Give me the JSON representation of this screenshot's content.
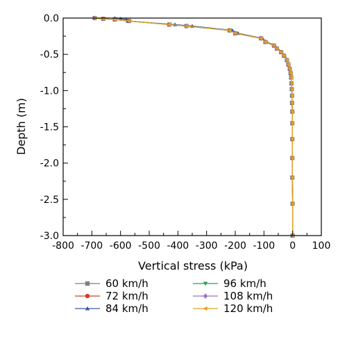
{
  "chart_data": {
    "type": "line",
    "title": "",
    "xlabel": "Vertical stress (kPa)",
    "ylabel": "Depth (m)",
    "xlim": [
      -800,
      100
    ],
    "ylim": [
      -3.0,
      0.0
    ],
    "xticks": [
      -800,
      -700,
      -600,
      -500,
      -400,
      -300,
      -200,
      -100,
      0,
      100
    ],
    "yticks": [
      0.0,
      -0.5,
      -1.0,
      -1.5,
      -2.0,
      -2.5,
      -3.0
    ],
    "xtick_labels": [
      "-800",
      "-700",
      "-600",
      "-500",
      "-400",
      "-300",
      "-200",
      "-100",
      "0",
      "100"
    ],
    "ytick_labels": [
      "0.0",
      "-0.5",
      "-1.0",
      "-1.5",
      "-2.0",
      "-2.5",
      "-3.0"
    ],
    "grid": false,
    "legend_position": "bottom",
    "series": [
      {
        "name": "60 km/h",
        "color": "#7f7f7f",
        "marker": "square",
        "x": [
          -690,
          -660,
          -620,
          -570,
          -430,
          -370,
          -220,
          -200,
          -110,
          -95,
          -65,
          -55,
          -40,
          -30,
          -20,
          -15,
          -10,
          -7,
          -5,
          -4,
          -3,
          -2,
          -2,
          -1,
          -1,
          -1,
          -1,
          -1,
          0,
          0
        ],
        "y": [
          0.0,
          -0.01,
          -0.02,
          -0.04,
          -0.09,
          -0.11,
          -0.17,
          -0.21,
          -0.28,
          -0.33,
          -0.38,
          -0.42,
          -0.47,
          -0.52,
          -0.58,
          -0.64,
          -0.7,
          -0.76,
          -0.82,
          -0.9,
          -0.98,
          -1.07,
          -1.17,
          -1.29,
          -1.45,
          -1.67,
          -1.93,
          -2.2,
          -2.56,
          -3.0
        ]
      },
      {
        "name": "72 km/h",
        "color": "#d23a2a",
        "marker": "circle",
        "x": [
          -690,
          -660,
          -620,
          -570,
          -430,
          -370,
          -220,
          -200,
          -110,
          -95,
          -65,
          -55,
          -40,
          -30,
          -20,
          -15,
          -10,
          -7,
          -5,
          -4,
          -3,
          -2,
          -2,
          -1,
          -1,
          -1,
          -1,
          -1,
          0,
          0
        ],
        "y": [
          0.0,
          -0.01,
          -0.02,
          -0.04,
          -0.09,
          -0.11,
          -0.17,
          -0.21,
          -0.28,
          -0.33,
          -0.38,
          -0.42,
          -0.47,
          -0.52,
          -0.58,
          -0.64,
          -0.7,
          -0.76,
          -0.82,
          -0.9,
          -0.98,
          -1.07,
          -1.17,
          -1.29,
          -1.45,
          -1.67,
          -1.93,
          -2.2,
          -2.56,
          -3.0
        ]
      },
      {
        "name": "84 km/h",
        "color": "#3a5ba0",
        "marker": "triangle-up",
        "x": [
          -620,
          -600,
          -580,
          -575,
          -410,
          -350,
          -210,
          -190,
          -105,
          -90,
          -62,
          -52,
          -38,
          -28,
          -19,
          -14,
          -10,
          -7,
          -5,
          -4,
          -3,
          -2,
          -2,
          -1,
          -1,
          -1,
          -1,
          -1,
          0,
          0
        ],
        "y": [
          0.0,
          -0.01,
          -0.02,
          -0.04,
          -0.09,
          -0.11,
          -0.17,
          -0.21,
          -0.28,
          -0.33,
          -0.38,
          -0.42,
          -0.47,
          -0.52,
          -0.58,
          -0.64,
          -0.7,
          -0.76,
          -0.82,
          -0.9,
          -0.98,
          -1.07,
          -1.17,
          -1.29,
          -1.45,
          -1.67,
          -1.93,
          -2.2,
          -2.56,
          -3.0
        ]
      },
      {
        "name": "96 km/h",
        "color": "#2e9e4a",
        "marker": "triangle-down",
        "x": [
          -690,
          -660,
          -620,
          -570,
          -430,
          -370,
          -220,
          -200,
          -110,
          -95,
          -65,
          -55,
          -40,
          -30,
          -20,
          -15,
          -10,
          -7,
          -5,
          -4,
          -3,
          -2,
          -2,
          -1,
          -1,
          -1,
          -1,
          -1,
          0,
          0
        ],
        "y": [
          0.0,
          -0.01,
          -0.02,
          -0.04,
          -0.09,
          -0.11,
          -0.17,
          -0.21,
          -0.28,
          -0.33,
          -0.38,
          -0.42,
          -0.47,
          -0.52,
          -0.58,
          -0.64,
          -0.7,
          -0.76,
          -0.82,
          -0.9,
          -0.98,
          -1.07,
          -1.17,
          -1.29,
          -1.45,
          -1.67,
          -1.93,
          -2.2,
          -2.56,
          -3.0
        ]
      },
      {
        "name": "108 km/h",
        "color": "#9b6fc8",
        "marker": "diamond",
        "x": [
          -690,
          -660,
          -620,
          -570,
          -430,
          -370,
          -220,
          -200,
          -110,
          -95,
          -65,
          -55,
          -40,
          -30,
          -20,
          -15,
          -10,
          -7,
          -5,
          -4,
          -3,
          -2,
          -2,
          -1,
          -1,
          -1,
          -1,
          -1,
          0,
          0
        ],
        "y": [
          0.0,
          -0.01,
          -0.02,
          -0.04,
          -0.09,
          -0.11,
          -0.17,
          -0.21,
          -0.28,
          -0.33,
          -0.38,
          -0.42,
          -0.47,
          -0.52,
          -0.58,
          -0.64,
          -0.7,
          -0.76,
          -0.82,
          -0.9,
          -0.98,
          -1.07,
          -1.17,
          -1.29,
          -1.45,
          -1.67,
          -1.93,
          -2.2,
          -2.56,
          -3.0
        ]
      },
      {
        "name": "120 km/h",
        "color": "#e0a21e",
        "marker": "triangle-left",
        "x": [
          -690,
          -660,
          -620,
          -570,
          -430,
          -370,
          -220,
          -200,
          -110,
          -95,
          -65,
          -55,
          -40,
          -30,
          -20,
          -15,
          -10,
          -7,
          -5,
          -4,
          -3,
          -2,
          -2,
          -1,
          -1,
          -1,
          -1,
          -1,
          0,
          0
        ],
        "y": [
          0.0,
          -0.01,
          -0.02,
          -0.04,
          -0.09,
          -0.11,
          -0.17,
          -0.21,
          -0.28,
          -0.33,
          -0.38,
          -0.42,
          -0.47,
          -0.52,
          -0.58,
          -0.64,
          -0.7,
          -0.76,
          -0.82,
          -0.9,
          -0.98,
          -1.07,
          -1.17,
          -1.29,
          -1.45,
          -1.67,
          -1.93,
          -2.2,
          -2.56,
          -3.0
        ]
      }
    ]
  }
}
